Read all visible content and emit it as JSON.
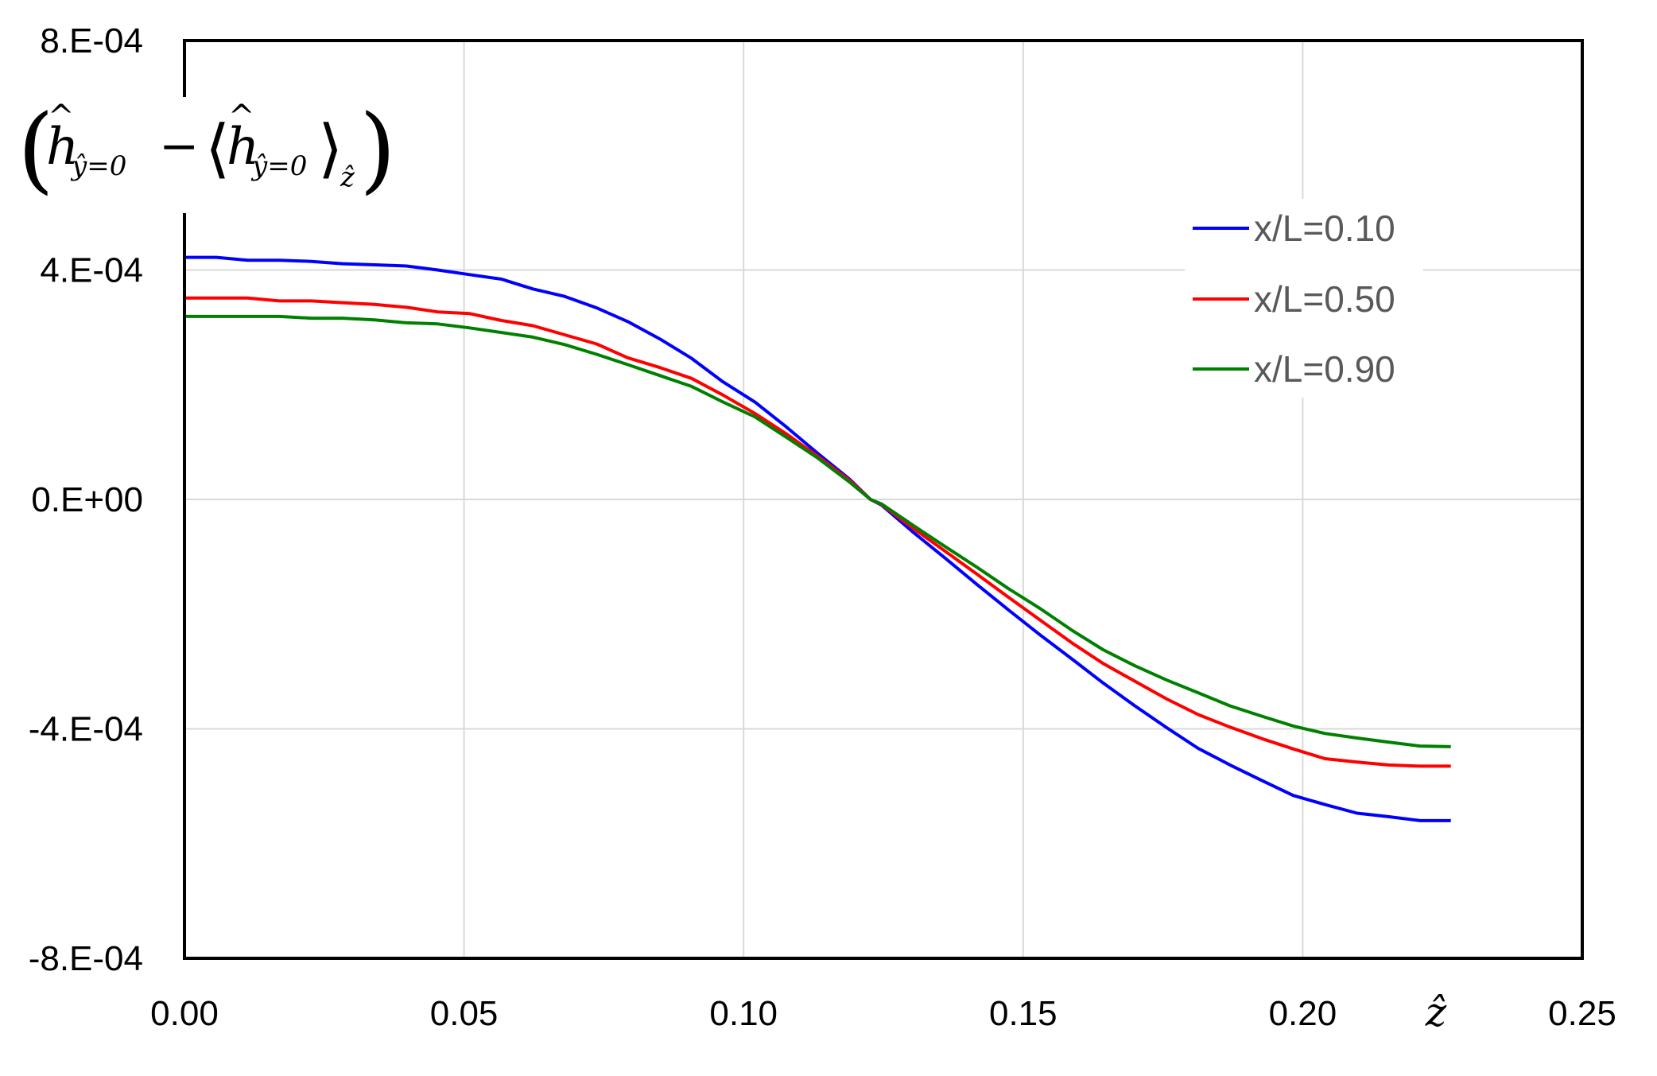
{
  "chart_data": {
    "type": "line",
    "title": "",
    "xlabel": "ẑ",
    "ylabel": "(ĥ_{ŷ=0} − ⟨ĥ_{ŷ=0}⟩_ẑ)",
    "xlim": [
      0.0,
      0.25
    ],
    "ylim": [
      -0.0008,
      0.0008
    ],
    "x_ticks": [
      "0.00",
      "0.05",
      "0.10",
      "0.15",
      "0.20",
      "0.25"
    ],
    "x_tick_values": [
      0.0,
      0.05,
      0.1,
      0.15,
      0.2,
      0.25
    ],
    "y_ticks": [
      "8.E-04",
      "4.E-04",
      "0.E+00",
      "-4.E-04",
      "-8.E-04"
    ],
    "y_tick_values": [
      0.0008,
      0.0004,
      0.0,
      -0.0004,
      -0.0008
    ],
    "grid": true,
    "legend_position": "upper right",
    "x": [
      0.0,
      0.0057,
      0.0113,
      0.017,
      0.0227,
      0.0283,
      0.034,
      0.0397,
      0.0453,
      0.051,
      0.0567,
      0.0623,
      0.068,
      0.0737,
      0.0793,
      0.085,
      0.0907,
      0.0963,
      0.102,
      0.1077,
      0.1133,
      0.119,
      0.1227,
      0.1247,
      0.1303,
      0.136,
      0.1417,
      0.1473,
      0.153,
      0.1587,
      0.1643,
      0.17,
      0.1757,
      0.1813,
      0.187,
      0.1927,
      0.1983,
      0.204,
      0.2097,
      0.2153,
      0.221,
      0.2265
    ],
    "series": [
      {
        "name": "x/L=0.10",
        "color": "#0000FF",
        "values": [
          0.000422,
          0.000422,
          0.000417,
          0.000417,
          0.000415,
          0.000411,
          0.000409,
          0.000407,
          0.0004,
          0.000392,
          0.000384,
          0.000367,
          0.000354,
          0.000334,
          0.00031,
          0.00028,
          0.000246,
          0.000205,
          0.00017,
          0.000126,
          8e-05,
          3.5e-05,
          0.0,
          -1e-05,
          -5.7e-05,
          -0.000102,
          -0.000148,
          -0.000192,
          -0.000236,
          -0.000278,
          -0.00032,
          -0.00036,
          -0.000398,
          -0.000434,
          -0.000463,
          -0.00049,
          -0.000516,
          -0.000532,
          -0.000547,
          -0.000553,
          -0.00056,
          -0.00056
        ]
      },
      {
        "name": "x/L=0.50",
        "color": "#FF0000",
        "values": [
          0.000351,
          0.000351,
          0.000351,
          0.000346,
          0.000346,
          0.000343,
          0.00034,
          0.000335,
          0.000327,
          0.000324,
          0.000312,
          0.000303,
          0.000287,
          0.000271,
          0.000247,
          0.00023,
          0.000211,
          0.000182,
          0.00015,
          0.000114,
          7.5e-05,
          3.3e-05,
          0.0,
          -9e-06,
          -5e-05,
          -9e-05,
          -0.00013,
          -0.00017,
          -0.00021,
          -0.00025,
          -0.000286,
          -0.000317,
          -0.000348,
          -0.000375,
          -0.000397,
          -0.000417,
          -0.000435,
          -0.000452,
          -0.000458,
          -0.000463,
          -0.000465,
          -0.000465
        ]
      },
      {
        "name": "x/L=0.90",
        "color": "#008000",
        "values": [
          0.000319,
          0.000319,
          0.000319,
          0.000319,
          0.000316,
          0.000316,
          0.000313,
          0.000308,
          0.000306,
          0.000299,
          0.000291,
          0.000283,
          0.00027,
          0.000253,
          0.000235,
          0.000216,
          0.000197,
          0.00017,
          0.000144,
          0.000108,
          7.2e-05,
          3e-05,
          0.0,
          -8e-06,
          -4.5e-05,
          -8.2e-05,
          -0.000118,
          -0.000155,
          -0.00019,
          -0.000228,
          -0.000262,
          -0.00029,
          -0.000315,
          -0.000337,
          -0.00036,
          -0.000378,
          -0.000395,
          -0.000408,
          -0.000416,
          -0.000423,
          -0.00043,
          -0.000431
        ]
      }
    ]
  },
  "legend": {
    "items": [
      {
        "label": "x/L=0.10",
        "color": "#0000FF"
      },
      {
        "label": "x/L=0.50",
        "color": "#FF0000"
      },
      {
        "label": "x/L=0.90",
        "color": "#008000"
      }
    ]
  },
  "axes": {
    "x_axis_label": "ẑ",
    "y_axis_label_parts": {
      "h": "h",
      "hat": "^",
      "sub": "ŷ=0",
      "minus": "−",
      "avg_sub": "ẑ"
    }
  },
  "colors": {
    "axis": "#000000",
    "grid": "#D9D9D9",
    "legend_text": "#595959",
    "background": "#FFFFFF"
  }
}
